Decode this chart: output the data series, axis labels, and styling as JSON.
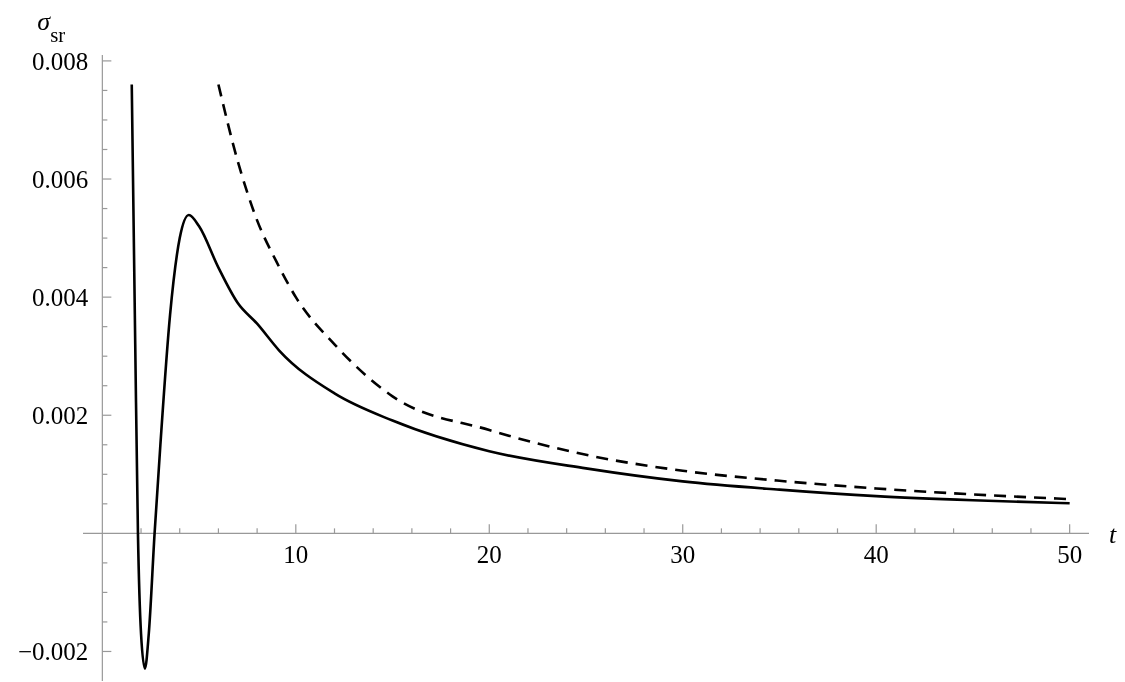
{
  "chart_data": {
    "type": "line",
    "xlabel": "t",
    "ylabel": "σ$_{sr}$",
    "xlim": [
      -1,
      51
    ],
    "ylim": [
      -0.0025,
      0.0081
    ],
    "xticks": [
      {
        "value": 2,
        "label": null
      },
      {
        "value": 4,
        "label": null
      },
      {
        "value": 6,
        "label": null
      },
      {
        "value": 8,
        "label": null
      },
      10,
      {
        "value": 12,
        "label": null
      },
      {
        "value": 14,
        "label": null
      },
      {
        "value": 16,
        "label": null
      },
      {
        "value": 18,
        "label": null
      },
      20,
      {
        "value": 22,
        "label": null
      },
      {
        "value": 24,
        "label": null
      },
      {
        "value": 26,
        "label": null
      },
      {
        "value": 28,
        "label": null
      },
      30,
      {
        "value": 32,
        "label": null
      },
      {
        "value": 34,
        "label": null
      },
      {
        "value": 36,
        "label": null
      },
      {
        "value": 38,
        "label": null
      },
      40,
      {
        "value": 42,
        "label": null
      },
      {
        "value": 44,
        "label": null
      },
      {
        "value": 46,
        "label": null
      },
      {
        "value": 48,
        "label": null
      },
      50
    ],
    "yticks": [
      {
        "value": -0.002,
        "label": "−0.002"
      },
      {
        "value": -0.0015,
        "label": null
      },
      {
        "value": -0.001,
        "label": null
      },
      {
        "value": -0.0005,
        "label": null
      },
      {
        "value": 0.0005,
        "label": null
      },
      {
        "value": 0.001,
        "label": null
      },
      {
        "value": 0.0015,
        "label": null
      },
      0.002,
      {
        "value": 0.0025,
        "label": null
      },
      {
        "value": 0.003,
        "label": null
      },
      {
        "value": 0.0035,
        "label": null
      },
      0.004,
      {
        "value": 0.0045,
        "label": null
      },
      {
        "value": 0.005,
        "label": null
      },
      {
        "value": 0.0055,
        "label": null
      },
      0.006,
      {
        "value": 0.0065,
        "label": null
      },
      {
        "value": 0.007,
        "label": null
      },
      {
        "value": 0.0075,
        "label": null
      },
      0.008
    ],
    "grid": false,
    "series": [
      {
        "color": "#000000",
        "line_style": "solid",
        "x": [
          1.52,
          1.7,
          1.84,
          2.0,
          2.2,
          2.4,
          2.7,
          3.0,
          3.5,
          4.0,
          4.47,
          5,
          6,
          7,
          8,
          9.13,
          12,
          15,
          20,
          25,
          30,
          35,
          40,
          45,
          50
        ],
        "values": [
          0.0076,
          0.0032,
          0,
          -0.0017,
          -0.00229,
          -0.0017,
          0,
          0.0015,
          0.0037,
          0.005,
          0.00539,
          0.0052,
          0.0045,
          0.0039,
          0.00355,
          0.0031,
          0.00237,
          0.00191,
          0.00139,
          0.0011,
          0.00088,
          0.00074,
          0.00063,
          0.00056,
          0.00051
        ]
      },
      {
        "color": "#000000",
        "line_style": "dashed",
        "x": [
          6,
          7,
          8,
          9,
          10,
          12,
          15,
          20,
          25,
          30,
          35,
          40,
          45,
          50
        ],
        "values": [
          0.0076,
          0.0063,
          0.0053,
          0.0046,
          0.004,
          0.0032,
          0.00232,
          0.00175,
          0.00133,
          0.00106,
          0.00089,
          0.00076,
          0.00066,
          0.00058
        ]
      }
    ]
  }
}
